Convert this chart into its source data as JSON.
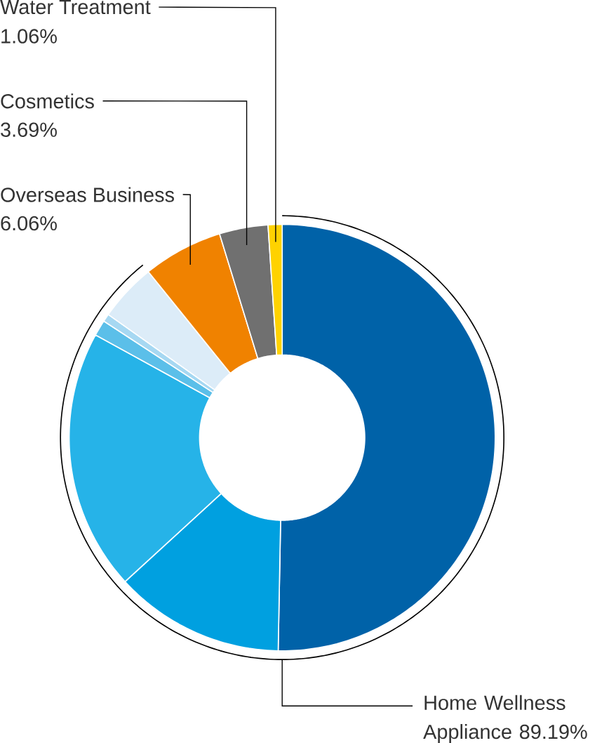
{
  "chart_data": {
    "type": "donut",
    "categories": [
      null,
      null,
      null,
      null,
      null,
      null,
      "Overseas Business",
      "Cosmetics",
      "Water Treatment"
    ],
    "values": [
      50.3,
      12.9,
      19.8,
      1.2,
      0.6,
      4.39,
      6.06,
      3.69,
      1.06
    ],
    "colors": [
      "#0062a8",
      "#00a0e0",
      "#26b3e8",
      "#5bbfe9",
      "#a6d8f2",
      "#dcecf8",
      "#f08200",
      "#707070",
      "#ffd200"
    ],
    "value_labels": [
      null,
      null,
      null,
      null,
      null,
      null,
      "6.06%",
      "3.69%",
      "1.06%"
    ],
    "annotations": [
      "Home Wellness Appliance 89.19%"
    ]
  }
}
